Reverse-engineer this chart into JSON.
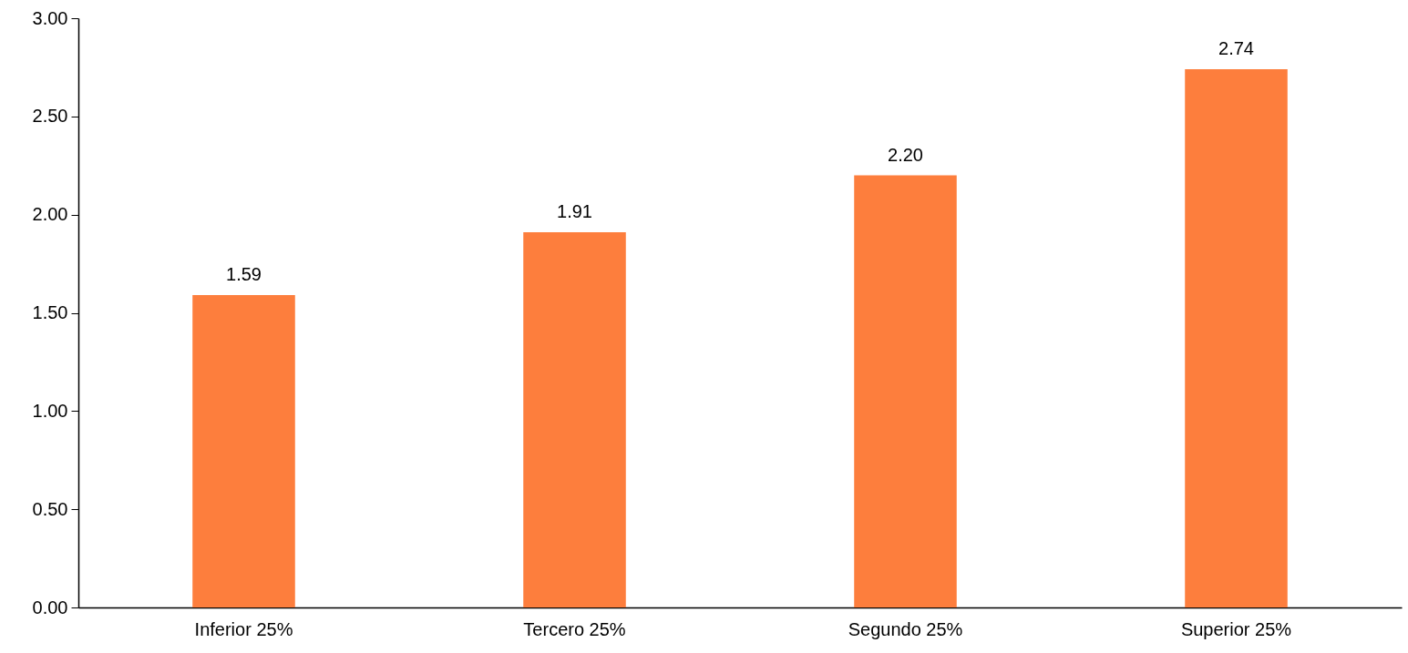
{
  "chart_data": {
    "type": "bar",
    "categories": [
      "Inferior 25%",
      "Tercero 25%",
      "Segundo 25%",
      "Superior 25%"
    ],
    "values": [
      1.59,
      1.91,
      2.2,
      2.74
    ],
    "value_labels": [
      "1.59",
      "1.91",
      "2.20",
      "2.74"
    ],
    "color": "#fd7e3d",
    "ylim": [
      0,
      3
    ],
    "yticks": [
      {
        "value": 0,
        "label": "0.00"
      },
      {
        "value": 0.5,
        "label": "0.50"
      },
      {
        "value": 1,
        "label": "1.00"
      },
      {
        "value": 1.5,
        "label": "1.50"
      },
      {
        "value": 2,
        "label": "2.00"
      },
      {
        "value": 2.5,
        "label": "2.50"
      },
      {
        "value": 3,
        "label": "3.00"
      }
    ],
    "grid": false
  }
}
